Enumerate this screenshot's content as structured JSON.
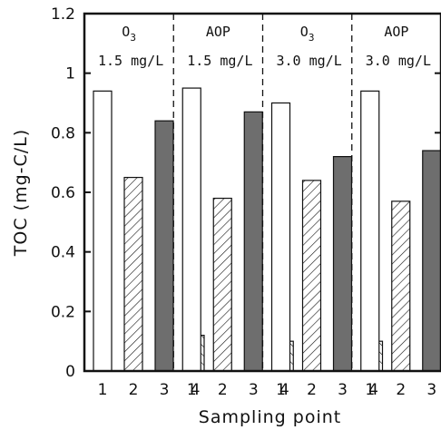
{
  "chart_data": {
    "type": "bar",
    "xlabel": "Sampling point",
    "ylabel": "TOC (mg-C/L)",
    "ylim": [
      0,
      1.2
    ],
    "yticks": [
      "0",
      "0.2",
      "0.4",
      "0.6",
      "0.8",
      "1",
      "1.2"
    ],
    "categories": [
      "1",
      "2",
      "3",
      "4"
    ],
    "grid": false,
    "groups": [
      {
        "label_top": "O",
        "label_top_sub": "3",
        "label_dose": "1.5 mg/L",
        "values": [
          0.94,
          0.65,
          0.84,
          0.12
        ]
      },
      {
        "label_top": "AOP",
        "label_top_sub": "",
        "label_dose": "1.5 mg/L",
        "values": [
          0.95,
          0.58,
          0.87,
          0.1
        ]
      },
      {
        "label_top": "O",
        "label_top_sub": "3",
        "label_dose": "3.0 mg/L",
        "values": [
          0.9,
          0.64,
          0.72,
          0.1
        ]
      },
      {
        "label_top": "AOP",
        "label_top_sub": "",
        "label_dose": "3.0 mg/L",
        "values": [
          0.94,
          0.57,
          0.74,
          0.1
        ]
      }
    ],
    "bar_styles": [
      "white",
      "hatch-forward",
      "dark-gray",
      "hatch-backward"
    ],
    "colors": {
      "dark_bar": "#6e6e6e",
      "outline": "#111111",
      "white_bar": "#ffffff"
    }
  }
}
